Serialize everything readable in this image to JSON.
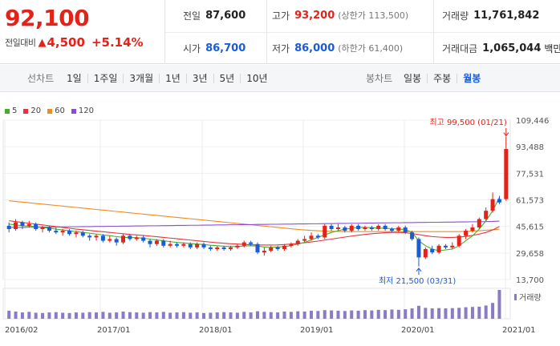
{
  "quote": {
    "price": "92,100",
    "change_label": "전일대비",
    "change_arrow": "▲",
    "change_value": "4,500",
    "change_pct": "+5.14%",
    "prev_close": {
      "label": "전일",
      "value": "87,600"
    },
    "high": {
      "label": "고가",
      "value": "93,200",
      "sub": "(상한가 113,500)"
    },
    "volume": {
      "label": "거래량",
      "value": "11,761,842"
    },
    "open": {
      "label": "시가",
      "value": "86,700"
    },
    "low": {
      "label": "저가",
      "value": "86,000",
      "sub": "(하한가 61,400)"
    },
    "amount": {
      "label": "거래대금",
      "value": "1,065,044",
      "unit": "백만"
    }
  },
  "toolbar": {
    "line_label": "선차트",
    "line_tabs": [
      "1일",
      "1주일",
      "3개월",
      "1년",
      "3년",
      "5년",
      "10년"
    ],
    "candle_label": "봉차트",
    "candle_tabs": [
      "일봉",
      "주봉",
      "월봉"
    ],
    "active_candle": "월봉"
  },
  "colors": {
    "up": "#e2231a",
    "down": "#1a5bd6",
    "ma5": "#43b02a",
    "ma20": "#e8323c",
    "ma60": "#f08c1e",
    "ma120": "#8a4fd1",
    "volume": "#8b7bc4"
  },
  "chart_data": {
    "type": "candlestick",
    "legend": [
      {
        "name": "5",
        "color": "#43b02a"
      },
      {
        "name": "20",
        "color": "#e8323c"
      },
      {
        "name": "60",
        "color": "#f08c1e"
      },
      {
        "name": "120",
        "color": "#8a4fd1"
      }
    ],
    "y_ticks": [
      "109,446",
      "93,488",
      "77,531",
      "61,573",
      "45,615",
      "29,658",
      "13,700"
    ],
    "ylim": [
      13700,
      109446
    ],
    "x_ticks": [
      "2016/02",
      "2017/01",
      "2018/01",
      "2019/01",
      "2020/01",
      "2021/01"
    ],
    "high_annotation": "최고 99,500 (01/21)",
    "low_annotation": "최저 21,500 (03/31)",
    "volume_label": "거래량",
    "candles": [
      {
        "o": 46,
        "c": 44,
        "h": 48,
        "l": 42
      },
      {
        "o": 44,
        "c": 48,
        "h": 50,
        "l": 43
      },
      {
        "o": 48,
        "c": 46,
        "h": 49,
        "l": 44
      },
      {
        "o": 46,
        "c": 47,
        "h": 49,
        "l": 45
      },
      {
        "o": 47,
        "c": 44,
        "h": 48,
        "l": 43
      },
      {
        "o": 44,
        "c": 45,
        "h": 46,
        "l": 42
      },
      {
        "o": 45,
        "c": 43,
        "h": 46,
        "l": 42
      },
      {
        "o": 43,
        "c": 42,
        "h": 45,
        "l": 41
      },
      {
        "o": 42,
        "c": 43,
        "h": 44,
        "l": 40
      },
      {
        "o": 43,
        "c": 41,
        "h": 44,
        "l": 40
      },
      {
        "o": 41,
        "c": 42,
        "h": 43,
        "l": 39
      },
      {
        "o": 42,
        "c": 40,
        "h": 43,
        "l": 39
      },
      {
        "o": 40,
        "c": 39,
        "h": 41,
        "l": 37
      },
      {
        "o": 39,
        "c": 40,
        "h": 41,
        "l": 37
      },
      {
        "o": 40,
        "c": 37,
        "h": 41,
        "l": 36
      },
      {
        "o": 37,
        "c": 38,
        "h": 40,
        "l": 36
      },
      {
        "o": 38,
        "c": 36,
        "h": 39,
        "l": 34
      },
      {
        "o": 36,
        "c": 40,
        "h": 41,
        "l": 35
      },
      {
        "o": 40,
        "c": 38,
        "h": 41,
        "l": 37
      },
      {
        "o": 38,
        "c": 39,
        "h": 40,
        "l": 37
      },
      {
        "o": 39,
        "c": 37,
        "h": 40,
        "l": 36
      },
      {
        "o": 37,
        "c": 35,
        "h": 38,
        "l": 33
      },
      {
        "o": 35,
        "c": 37,
        "h": 38,
        "l": 34
      },
      {
        "o": 37,
        "c": 34,
        "h": 38,
        "l": 33
      },
      {
        "o": 34,
        "c": 35,
        "h": 37,
        "l": 33
      },
      {
        "o": 35,
        "c": 34,
        "h": 36,
        "l": 33
      },
      {
        "o": 34,
        "c": 35,
        "h": 36,
        "l": 33
      },
      {
        "o": 35,
        "c": 33,
        "h": 36,
        "l": 32
      },
      {
        "o": 33,
        "c": 35,
        "h": 36,
        "l": 32
      },
      {
        "o": 35,
        "c": 33,
        "h": 36,
        "l": 32
      },
      {
        "o": 33,
        "c": 32,
        "h": 34,
        "l": 31
      },
      {
        "o": 32,
        "c": 33,
        "h": 34,
        "l": 31
      },
      {
        "o": 33,
        "c": 32,
        "h": 34,
        "l": 31
      },
      {
        "o": 32,
        "c": 33,
        "h": 34,
        "l": 31
      },
      {
        "o": 33,
        "c": 34,
        "h": 35,
        "l": 32
      },
      {
        "o": 34,
        "c": 36,
        "h": 37,
        "l": 33
      },
      {
        "o": 36,
        "c": 35,
        "h": 37,
        "l": 34
      },
      {
        "o": 35,
        "c": 30,
        "h": 36,
        "l": 29
      },
      {
        "o": 30,
        "c": 31,
        "h": 33,
        "l": 28
      },
      {
        "o": 31,
        "c": 33,
        "h": 34,
        "l": 30
      },
      {
        "o": 33,
        "c": 32,
        "h": 34,
        "l": 31
      },
      {
        "o": 32,
        "c": 34,
        "h": 35,
        "l": 31
      },
      {
        "o": 34,
        "c": 35,
        "h": 36,
        "l": 33
      },
      {
        "o": 35,
        "c": 37,
        "h": 38,
        "l": 34
      },
      {
        "o": 37,
        "c": 38,
        "h": 40,
        "l": 36
      },
      {
        "o": 38,
        "c": 40,
        "h": 42,
        "l": 37
      },
      {
        "o": 40,
        "c": 39,
        "h": 41,
        "l": 38
      },
      {
        "o": 39,
        "c": 46,
        "h": 47,
        "l": 38
      },
      {
        "o": 46,
        "c": 44,
        "h": 47,
        "l": 43
      },
      {
        "o": 44,
        "c": 45,
        "h": 47,
        "l": 43
      },
      {
        "o": 45,
        "c": 43,
        "h": 46,
        "l": 42
      },
      {
        "o": 43,
        "c": 46,
        "h": 47,
        "l": 42
      },
      {
        "o": 46,
        "c": 44,
        "h": 47,
        "l": 43
      },
      {
        "o": 44,
        "c": 45,
        "h": 46,
        "l": 43
      },
      {
        "o": 45,
        "c": 44,
        "h": 46,
        "l": 43
      },
      {
        "o": 44,
        "c": 46,
        "h": 47,
        "l": 43
      },
      {
        "o": 46,
        "c": 44,
        "h": 47,
        "l": 43
      },
      {
        "o": 44,
        "c": 43,
        "h": 45,
        "l": 42
      },
      {
        "o": 43,
        "c": 45,
        "h": 46,
        "l": 42
      },
      {
        "o": 45,
        "c": 42,
        "h": 46,
        "l": 41
      },
      {
        "o": 42,
        "c": 38,
        "h": 43,
        "l": 37
      },
      {
        "o": 38,
        "c": 27,
        "h": 39,
        "l": 21.5
      },
      {
        "o": 27,
        "c": 32,
        "h": 33,
        "l": 26
      },
      {
        "o": 32,
        "c": 30,
        "h": 34,
        "l": 29
      },
      {
        "o": 30,
        "c": 34,
        "h": 35,
        "l": 29
      },
      {
        "o": 34,
        "c": 33,
        "h": 35,
        "l": 32
      },
      {
        "o": 33,
        "c": 34,
        "h": 36,
        "l": 32
      },
      {
        "o": 34,
        "c": 40,
        "h": 41,
        "l": 33
      },
      {
        "o": 40,
        "c": 43,
        "h": 44,
        "l": 38
      },
      {
        "o": 43,
        "c": 45,
        "h": 47,
        "l": 42
      },
      {
        "o": 45,
        "c": 50,
        "h": 51,
        "l": 44
      },
      {
        "o": 50,
        "c": 55,
        "h": 57,
        "l": 49
      },
      {
        "o": 55,
        "c": 62,
        "h": 66,
        "l": 54
      },
      {
        "o": 62,
        "c": 60,
        "h": 64,
        "l": 59
      },
      {
        "o": 62,
        "c": 92.1,
        "h": 99.5,
        "l": 61
      }
    ],
    "ma5": [
      47,
      46.5,
      46,
      45.8,
      45.5,
      45,
      44.5,
      44,
      43.5,
      43,
      42.5,
      42,
      41.5,
      41,
      40.5,
      40,
      39.5,
      39,
      39,
      38.8,
      38.5,
      38,
      37.5,
      37,
      36.5,
      36,
      35.7,
      35.3,
      35,
      34.7,
      34.3,
      34,
      33.7,
      33.5,
      33.5,
      33.8,
      34,
      33.8,
      33.2,
      33,
      33.2,
      33.5,
      34,
      35,
      36,
      37.5,
      39,
      40.5,
      42,
      43,
      44,
      44.5,
      45,
      45,
      44.8,
      44.6,
      44.5,
      44.3,
      44,
      43.8,
      42,
      37,
      34,
      32,
      31,
      31.5,
      32,
      34,
      37,
      40,
      44,
      49,
      55,
      63
    ],
    "ma20": [
      49,
      48.5,
      48,
      47.5,
      47,
      46.5,
      46,
      45.5,
      45,
      44.5,
      44,
      43.6,
      43.2,
      42.8,
      42.4,
      42,
      41.6,
      41.2,
      40.8,
      40.5,
      40.2,
      39.8,
      39.4,
      39,
      38.6,
      38.2,
      37.8,
      37.4,
      37,
      36.6,
      36.2,
      35.8,
      35.5,
      35.2,
      35,
      34.8,
      34.6,
      34.5,
      34.4,
      34.4,
      34.5,
      34.7,
      35,
      35.4,
      35.8,
      36.3,
      36.8,
      37.4,
      38,
      38.6,
      39.2,
      39.8,
      40.3,
      40.8,
      41.2,
      41.5,
      41.8,
      42,
      42,
      41.8,
      41.3,
      40.7,
      40,
      39.5,
      39.2,
      39,
      39,
      39.2,
      39.6,
      40.2,
      41,
      42,
      43.5,
      45.5
    ],
    "ma60": [
      61,
      60.6,
      60.2,
      59.8,
      59.4,
      59,
      58.6,
      58.2,
      57.8,
      57.4,
      57,
      56.6,
      56.2,
      55.8,
      55.4,
      55,
      54.6,
      54.2,
      53.8,
      53.4,
      53,
      52.6,
      52.2,
      51.8,
      51.4,
      51,
      50.6,
      50.2,
      49.8,
      49.4,
      49,
      48.6,
      48.2,
      47.8,
      47.4,
      47,
      46.6,
      46.2,
      45.8,
      45.4,
      45,
      44.6,
      44.2,
      43.8,
      43.5,
      43.2,
      43,
      42.8,
      42.7,
      42.6,
      42.5,
      42.5,
      42.5,
      42.5,
      42.5,
      42.5,
      42.5,
      42.5,
      42.5,
      42.5,
      42.5,
      42.5,
      42.5,
      42.5,
      42.5,
      42.5,
      42.5,
      42.5,
      42.6,
      42.8,
      43,
      43.3,
      43.6,
      44
    ],
    "ma120": [
      45,
      45,
      45,
      45.1,
      45.1,
      45.2,
      45.2,
      45.3,
      45.3,
      45.4,
      45.4,
      45.5,
      45.5,
      45.6,
      45.6,
      45.7,
      45.7,
      45.8,
      45.8,
      45.9,
      45.9,
      46,
      46,
      46.1,
      46.1,
      46.2,
      46.2,
      46.3,
      46.3,
      46.4,
      46.4,
      46.5,
      46.5,
      46.6,
      46.6,
      46.7,
      46.7,
      46.8,
      46.8,
      46.9,
      46.9,
      47,
      47,
      47.1,
      47.1,
      47.2,
      47.2,
      47.3,
      47.3,
      47.4,
      47.4,
      47.5,
      47.5,
      47.6,
      47.6,
      47.7,
      47.7,
      47.8,
      47.8,
      47.9,
      47.9,
      48,
      48,
      48.1,
      48.1,
      48.2,
      48.2,
      48.3,
      48.3,
      48.4,
      48.4,
      48.5,
      48.6,
      48.8
    ],
    "volume": [
      28,
      25,
      22,
      24,
      21,
      20,
      22,
      23,
      21,
      20,
      22,
      21,
      23,
      22,
      24,
      21,
      22,
      25,
      23,
      22,
      21,
      23,
      22,
      24,
      21,
      22,
      23,
      21,
      22,
      20,
      21,
      22,
      23,
      22,
      21,
      24,
      22,
      26,
      24,
      23,
      22,
      25,
      24,
      26,
      25,
      28,
      27,
      30,
      29,
      28,
      27,
      29,
      28,
      30,
      29,
      31,
      30,
      32,
      31,
      33,
      36,
      45,
      38,
      36,
      37,
      36,
      37,
      38,
      40,
      41,
      42,
      46,
      55,
      100
    ]
  }
}
